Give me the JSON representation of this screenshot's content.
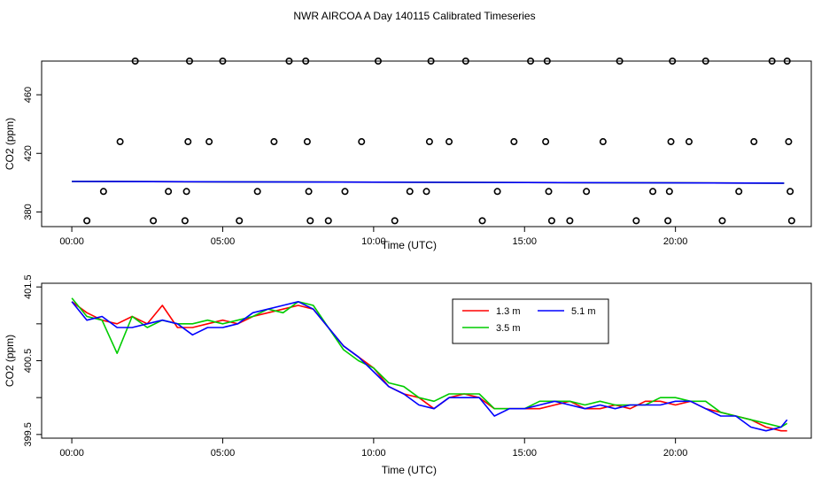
{
  "title": "NWR AIRCOA A  Day 140115  Calibrated Timeseries",
  "chart_data": [
    {
      "type": "scatter",
      "xlabel": "Time (UTC)",
      "ylabel": "CO2 (ppm)",
      "xlim": [
        -1,
        24.5
      ],
      "ylim": [
        370,
        483
      ],
      "xticks": [
        0,
        5,
        10,
        15,
        20
      ],
      "xtick_labels": [
        "00:00",
        "05:00",
        "10:00",
        "15:00",
        "20:00"
      ],
      "yticks": [
        380,
        420,
        460
      ],
      "ytick_labels": [
        "380",
        "420",
        "460"
      ],
      "points": {
        "name": "calibration/reference samples",
        "x": [
          0.5,
          1.05,
          1.6,
          2.1,
          2.7,
          3.2,
          3.75,
          3.8,
          3.85,
          3.9,
          4.55,
          5.0,
          5.55,
          6.15,
          6.7,
          7.2,
          7.75,
          7.8,
          7.85,
          7.9,
          8.5,
          9.05,
          9.6,
          10.15,
          10.7,
          11.2,
          11.75,
          11.85,
          11.9,
          12.5,
          13.05,
          13.6,
          14.1,
          14.65,
          15.2,
          15.7,
          15.75,
          15.8,
          15.9,
          16.5,
          17.05,
          17.6,
          18.15,
          18.7,
          19.25,
          19.75,
          19.8,
          19.85,
          19.9,
          20.45,
          21.0,
          21.55,
          22.1,
          22.6,
          23.2,
          23.7,
          23.75,
          23.8,
          23.85
        ],
        "y": [
          374,
          394,
          428,
          483,
          374,
          394,
          374,
          394,
          428,
          483,
          428,
          483,
          374,
          394,
          428,
          483,
          483,
          428,
          394,
          374,
          374,
          394,
          428,
          483,
          374,
          394,
          394,
          428,
          483,
          428,
          483,
          374,
          394,
          428,
          483,
          428,
          483,
          394,
          374,
          374,
          394,
          428,
          483,
          374,
          394,
          374,
          394,
          428,
          483,
          428,
          483,
          374,
          394,
          428,
          483,
          483,
          428,
          394,
          374
        ]
      },
      "series": [
        {
          "name": "1.3 m",
          "color": "#ff0000",
          "x": [
            0,
            23.6
          ],
          "y": [
            400.8,
            399.7
          ]
        },
        {
          "name": "3.5 m",
          "color": "#00cc00",
          "x": [
            0,
            23.6
          ],
          "y": [
            400.8,
            399.7
          ]
        },
        {
          "name": "5.1 m",
          "color": "#0000ff",
          "x": [
            0,
            23.6
          ],
          "y": [
            400.8,
            399.7
          ]
        }
      ]
    },
    {
      "type": "line",
      "xlabel": "Time (UTC)",
      "ylabel": "CO2 (ppm)",
      "xlim": [
        -1,
        24.5
      ],
      "ylim": [
        399.45,
        401.55
      ],
      "xticks": [
        0,
        5,
        10,
        15,
        20
      ],
      "xtick_labels": [
        "00:00",
        "05:00",
        "10:00",
        "15:00",
        "20:00"
      ],
      "yticks": [
        399.5,
        400.0,
        400.5,
        401.0,
        401.5
      ],
      "ytick_labels": [
        "399.5",
        "",
        "400.5",
        "",
        "401.5"
      ],
      "x": [
        0.0,
        0.5,
        1.0,
        1.5,
        2.0,
        2.5,
        3.0,
        3.5,
        4.0,
        4.5,
        5.0,
        5.5,
        6.0,
        6.5,
        7.0,
        7.5,
        8.0,
        8.5,
        9.0,
        9.5,
        10.0,
        10.5,
        11.0,
        11.5,
        12.0,
        12.5,
        13.0,
        13.5,
        14.0,
        14.5,
        15.0,
        15.5,
        16.0,
        16.5,
        17.0,
        17.5,
        18.0,
        18.5,
        19.0,
        19.5,
        20.0,
        20.5,
        21.0,
        21.5,
        22.0,
        22.5,
        23.0,
        23.5,
        23.7
      ],
      "legend": {
        "position": "top-center",
        "entries": [
          "1.3 m",
          "3.5 m",
          "5.1 m"
        ]
      },
      "series": [
        {
          "name": "1.3 m",
          "color": "#ff0000",
          "y": [
            401.3,
            401.15,
            401.05,
            401.0,
            401.1,
            401.0,
            401.25,
            400.95,
            400.95,
            401.0,
            401.05,
            401.0,
            401.1,
            401.15,
            401.2,
            401.25,
            401.2,
            400.95,
            400.7,
            400.55,
            400.4,
            400.15,
            400.05,
            400.0,
            399.85,
            400.0,
            400.05,
            400.0,
            399.85,
            399.85,
            399.85,
            399.85,
            399.9,
            399.95,
            399.85,
            399.85,
            399.9,
            399.85,
            399.95,
            399.95,
            399.9,
            399.95,
            399.85,
            399.8,
            399.75,
            399.7,
            399.6,
            399.55,
            399.55
          ]
        },
        {
          "name": "3.5 m",
          "color": "#00cc00",
          "y": [
            401.35,
            401.1,
            401.05,
            400.6,
            401.1,
            400.95,
            401.05,
            401.0,
            401.0,
            401.05,
            401.0,
            401.05,
            401.1,
            401.2,
            401.15,
            401.3,
            401.25,
            400.95,
            400.65,
            400.5,
            400.4,
            400.2,
            400.15,
            400.0,
            399.95,
            400.05,
            400.05,
            400.05,
            399.85,
            399.85,
            399.85,
            399.95,
            399.95,
            399.95,
            399.9,
            399.95,
            399.9,
            399.9,
            399.9,
            400.0,
            400.0,
            399.95,
            399.95,
            399.8,
            399.75,
            399.7,
            399.65,
            399.6,
            399.65
          ]
        },
        {
          "name": "5.1 m",
          "color": "#0000ff",
          "y": [
            401.3,
            401.05,
            401.1,
            400.95,
            400.95,
            401.0,
            401.05,
            401.0,
            400.85,
            400.95,
            400.95,
            401.0,
            401.15,
            401.2,
            401.25,
            401.3,
            401.2,
            400.95,
            400.7,
            400.55,
            400.35,
            400.15,
            400.05,
            399.9,
            399.85,
            400.0,
            400.0,
            400.0,
            399.75,
            399.85,
            399.85,
            399.9,
            399.95,
            399.9,
            399.85,
            399.9,
            399.85,
            399.9,
            399.9,
            399.9,
            399.95,
            399.95,
            399.85,
            399.75,
            399.75,
            399.6,
            399.55,
            399.6,
            399.7
          ]
        }
      ]
    }
  ]
}
